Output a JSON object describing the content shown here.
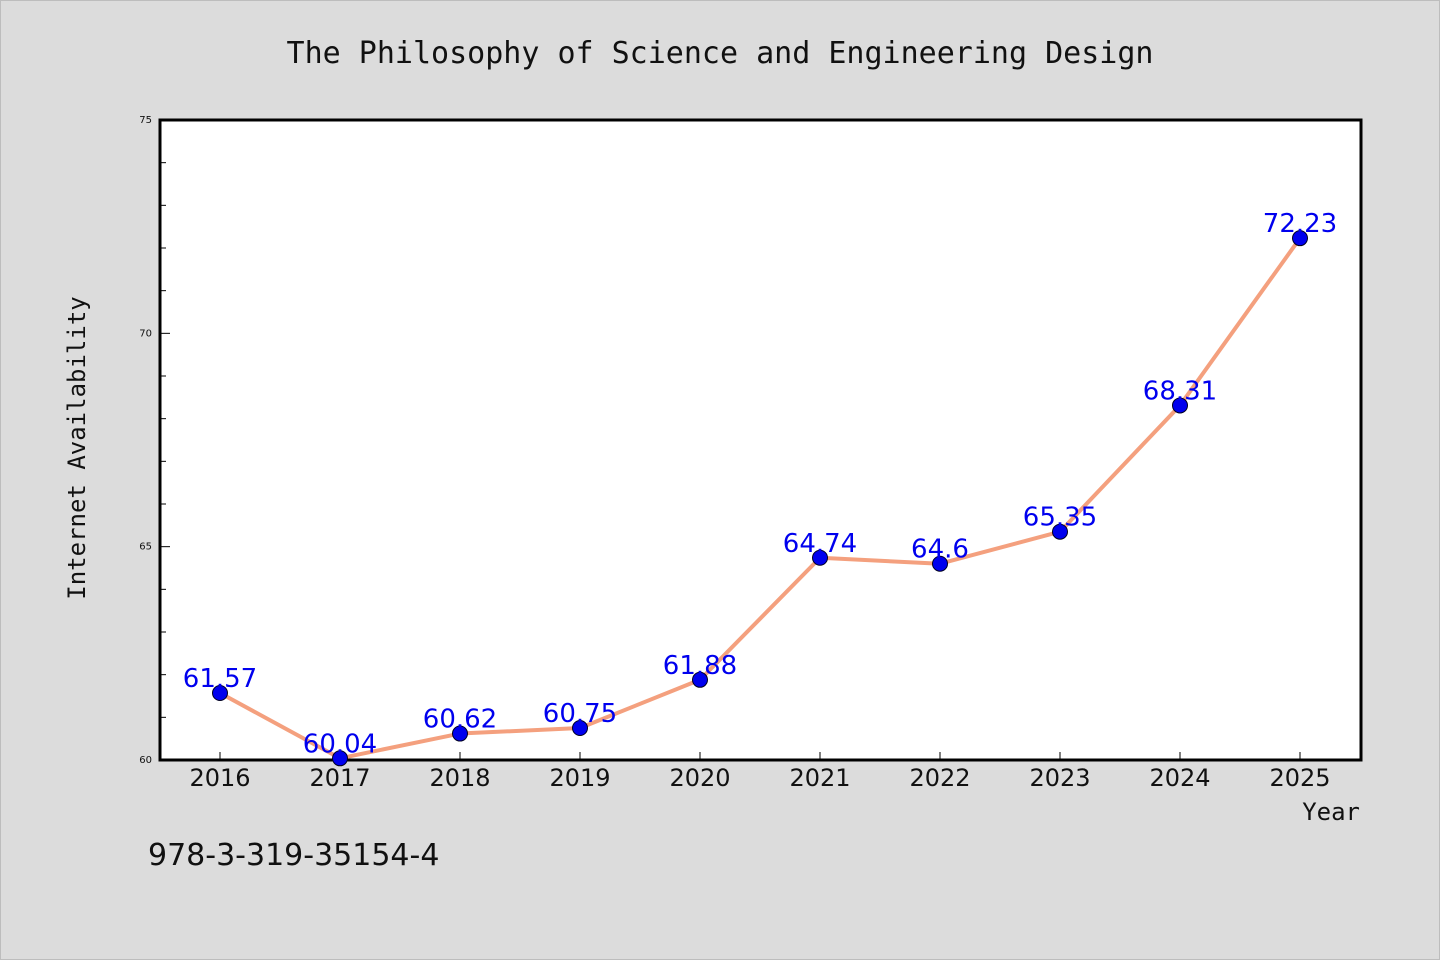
{
  "chart_data": {
    "type": "line",
    "title": "The Philosophy of Science and Engineering Design",
    "xlabel": "Year",
    "ylabel": "Internet Availability",
    "categories": [
      "2016",
      "2017",
      "2018",
      "2019",
      "2020",
      "2021",
      "2022",
      "2023",
      "2024",
      "2025"
    ],
    "series": [
      {
        "values": [
          61.57,
          60.04,
          60.62,
          60.75,
          61.88,
          64.74,
          64.6,
          65.35,
          68.31,
          72.23
        ],
        "data_labels": [
          "61.57",
          "60.04",
          "60.62",
          "60.75",
          "61.88",
          "64.74",
          "64.6",
          "65.35",
          "68.31",
          "72.23"
        ]
      }
    ],
    "ylim": [
      60,
      75
    ],
    "y_ticks": [
      "60",
      "65",
      "70",
      "75"
    ],
    "grid": false,
    "legend": "none",
    "colors": {
      "line": "#f4a07e",
      "marker": "#0000ee",
      "data_label": "#0000ee",
      "background": "#dcdcdc",
      "plot_background": "#ffffff"
    }
  },
  "footnote": "978-3-319-35154-4"
}
